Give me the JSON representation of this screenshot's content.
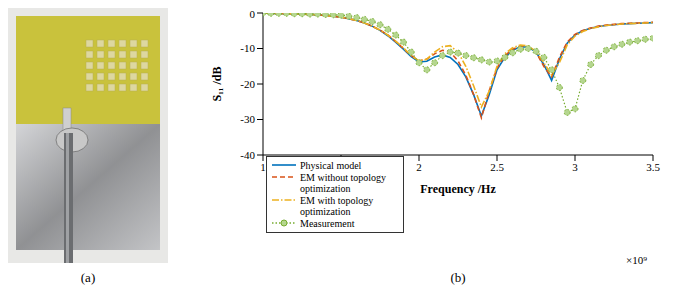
{
  "panels": [
    "(a)",
    "(b)"
  ],
  "chart_data": {
    "type": "line",
    "x_label": "Frequency /Hz",
    "y_label": "S₁₁ /dB",
    "annotations": [
      {
        "text": "×10⁹"
      }
    ],
    "x": [
      1.0,
      1.05,
      1.1,
      1.15,
      1.2,
      1.25,
      1.3,
      1.35,
      1.4,
      1.45,
      1.5,
      1.55,
      1.6,
      1.65,
      1.7,
      1.75,
      1.8,
      1.85,
      1.9,
      1.95,
      2.0,
      2.05,
      2.1,
      2.15,
      2.2,
      2.25,
      2.3,
      2.35,
      2.4,
      2.45,
      2.5,
      2.55,
      2.6,
      2.65,
      2.7,
      2.75,
      2.8,
      2.85,
      2.9,
      2.95,
      3.0,
      3.05,
      3.1,
      3.15,
      3.2,
      3.25,
      3.3,
      3.35,
      3.4,
      3.45,
      3.5
    ],
    "xlim": [
      1,
      3.5
    ],
    "xticks": [
      1,
      1.5,
      2,
      2.5,
      3,
      3.5
    ],
    "ylim": [
      -40,
      0
    ],
    "yticks": [
      -40,
      -30,
      -20,
      -10,
      0
    ],
    "grid": false,
    "legend": "lower left",
    "series": [
      {
        "name": "Physical model",
        "color": "#0072bd",
        "line_style": "solid",
        "marker": "none",
        "values": [
          0,
          -0.1,
          -0.1,
          -0.2,
          -0.2,
          -0.3,
          -0.4,
          -0.5,
          -0.7,
          -0.9,
          -1.2,
          -1.6,
          -2.1,
          -2.8,
          -3.7,
          -4.9,
          -6.4,
          -8.2,
          -10.2,
          -12.3,
          -13.8,
          -13.6,
          -12.4,
          -11.8,
          -12.5,
          -14.5,
          -18,
          -23,
          -29,
          -23,
          -16,
          -12.5,
          -10.5,
          -9.5,
          -9.6,
          -11,
          -14.5,
          -19,
          -13,
          -8.5,
          -6.2,
          -5,
          -4.3,
          -3.8,
          -3.5,
          -3.3,
          -3.1,
          -3,
          -2.9,
          -2.8,
          -2.7
        ]
      },
      {
        "name": "EM without topology optimization",
        "color": "#d95319",
        "line_style": "dashed",
        "marker": "none",
        "values": [
          0,
          -0.1,
          -0.1,
          -0.2,
          -0.2,
          -0.3,
          -0.4,
          -0.5,
          -0.7,
          -0.9,
          -1.2,
          -1.6,
          -2.1,
          -2.8,
          -3.7,
          -4.8,
          -6.2,
          -8,
          -10,
          -12,
          -13.5,
          -13,
          -11.5,
          -10.5,
          -11,
          -13.5,
          -17.5,
          -23,
          -29.5,
          -22,
          -15.5,
          -12,
          -10.2,
          -9.3,
          -9.5,
          -11,
          -15,
          -18,
          -12.5,
          -8.2,
          -6,
          -4.9,
          -4.2,
          -3.7,
          -3.4,
          -3.2,
          -3,
          -2.9,
          -2.8,
          -2.7,
          -2.6
        ]
      },
      {
        "name": "EM with topology optimization",
        "color": "#edb120",
        "line_style": "dashdot",
        "marker": "none",
        "values": [
          0,
          -0.1,
          -0.1,
          -0.2,
          -0.2,
          -0.3,
          -0.4,
          -0.5,
          -0.7,
          -0.9,
          -1.2,
          -1.6,
          -2.1,
          -2.8,
          -3.7,
          -4.8,
          -6.2,
          -7.9,
          -9.8,
          -12,
          -13.5,
          -13,
          -11,
          -9.5,
          -9.2,
          -11,
          -15,
          -20.5,
          -26.5,
          -22,
          -15,
          -11.5,
          -9.8,
          -9,
          -9.3,
          -10.8,
          -14,
          -17.5,
          -14,
          -9,
          -6.5,
          -5.2,
          -4.4,
          -3.9,
          -3.5,
          -3.3,
          -3.1,
          -3,
          -2.9,
          -2.8,
          -2.7
        ]
      },
      {
        "name": "Measurement",
        "color": "#77ac30",
        "line_style": "dotted",
        "marker": "circle",
        "values": [
          0,
          -0.1,
          -0.1,
          -0.1,
          -0.2,
          -0.2,
          -0.3,
          -0.3,
          -0.4,
          -0.5,
          -0.6,
          -0.9,
          -1.3,
          -1.8,
          -2.4,
          -3.3,
          -4.6,
          -6.2,
          -8.2,
          -11,
          -14,
          -16,
          -14,
          -12,
          -11,
          -11.3,
          -12,
          -12.6,
          -13.2,
          -13.8,
          -13.5,
          -12.5,
          -11.2,
          -10.2,
          -10,
          -10.8,
          -12.5,
          -16,
          -21,
          -28,
          -27,
          -19,
          -14.5,
          -12,
          -10.5,
          -9.5,
          -8.8,
          -8.2,
          -7.8,
          -7.4,
          -7.1
        ]
      }
    ]
  }
}
